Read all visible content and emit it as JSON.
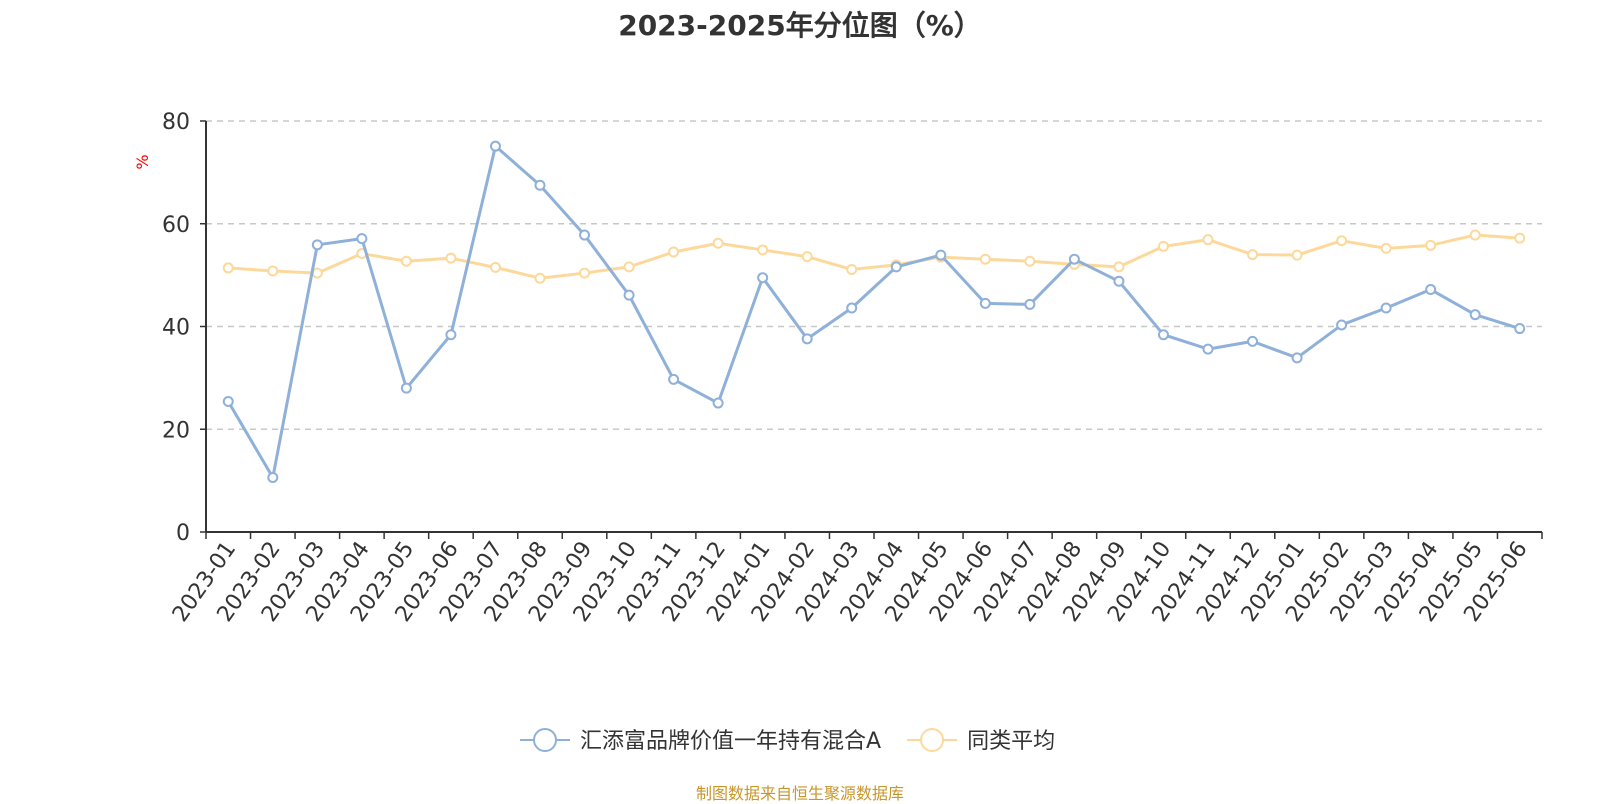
{
  "title": "2023-2025年分位图（%）",
  "source": "制图数据来自恒生聚源数据库",
  "colors": {
    "series_a": "#8eb0d9",
    "series_b": "#fcd99b",
    "axis": "#333333",
    "grid": "#c8c8c8",
    "unit": "#ff0000"
  },
  "chart_data": {
    "type": "line",
    "ylabel": "%",
    "ylim": [
      0,
      80
    ],
    "yticks": [
      0,
      20,
      40,
      60,
      80
    ],
    "grid": "horizontal dashed",
    "legend_position": "bottom",
    "categories": [
      "2023-01",
      "2023-02",
      "2023-03",
      "2023-04",
      "2023-05",
      "2023-06",
      "2023-07",
      "2023-08",
      "2023-09",
      "2023-10",
      "2023-11",
      "2023-12",
      "2024-01",
      "2024-02",
      "2024-03",
      "2024-04",
      "2024-05",
      "2024-06",
      "2024-07",
      "2024-08",
      "2024-09",
      "2024-10",
      "2024-11",
      "2024-12",
      "2025-01",
      "2025-02",
      "2025-03",
      "2025-04",
      "2025-05",
      "2025-06"
    ],
    "series": [
      {
        "name": "汇添富品牌价值一年持有混合A",
        "values": [
          25.4,
          10.6,
          55.9,
          57.1,
          28.0,
          38.4,
          75.1,
          67.5,
          57.8,
          46.1,
          29.7,
          25.1,
          49.5,
          37.6,
          43.6,
          51.6,
          53.9,
          44.5,
          44.3,
          53.1,
          48.8,
          38.4,
          35.6,
          37.1,
          33.9,
          40.3,
          43.6,
          47.2,
          42.3,
          39.6
        ]
      },
      {
        "name": "同类平均",
        "values": [
          51.4,
          50.8,
          50.4,
          54.2,
          52.7,
          53.3,
          51.5,
          49.4,
          50.4,
          51.6,
          54.5,
          56.2,
          54.9,
          53.6,
          51.1,
          52.0,
          53.5,
          53.1,
          52.7,
          52.1,
          51.6,
          55.6,
          56.9,
          54.0,
          53.9,
          56.7,
          55.2,
          55.8,
          57.8,
          57.2
        ]
      }
    ]
  }
}
